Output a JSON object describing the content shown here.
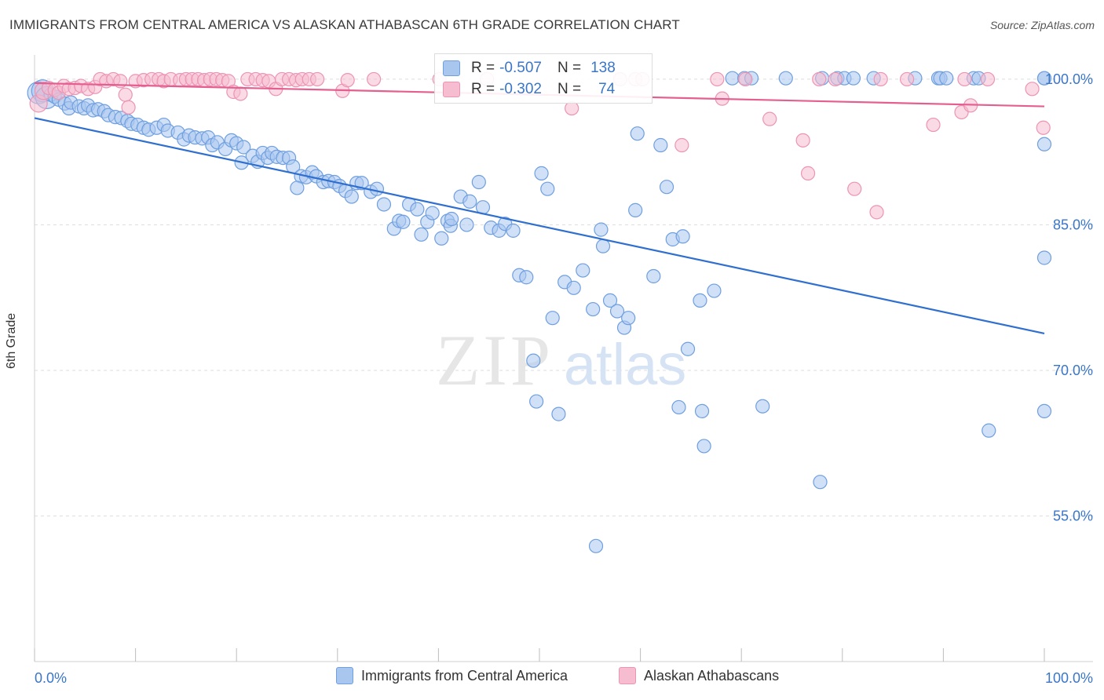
{
  "title": "IMMIGRANTS FROM CENTRAL AMERICA VS ALASKAN ATHABASCAN 6TH GRADE CORRELATION CHART",
  "source": "Source: ZipAtlas.com",
  "watermark": {
    "zip": "ZIP",
    "atlas": "atlas"
  },
  "colors": {
    "blue_fill": "#a9c6ef",
    "blue_stroke": "#6f9fe0",
    "blue_line": "#2f6fcf",
    "pink_fill": "#f6bcd0",
    "pink_stroke": "#ec94b4",
    "pink_line": "#e45f8f",
    "tick_label": "#3a76c8",
    "grid": "#dedede"
  },
  "legend_top": {
    "rows": [
      {
        "r_label": "R =",
        "r_value": "-0.507",
        "n_label": "N =",
        "n_value": "138"
      },
      {
        "r_label": "R =",
        "r_value": "-0.302",
        "n_label": "N =",
        "n_value": "74"
      }
    ]
  },
  "legend_bottom": [
    {
      "label": "Immigrants from Central America"
    },
    {
      "label": "Alaskan Athabascans"
    }
  ],
  "chart_data": {
    "type": "scatter",
    "title": "IMMIGRANTS FROM CENTRAL AMERICA VS ALASKAN ATHABASCAN 6TH GRADE CORRELATION CHART",
    "xlabel": "",
    "ylabel": "6th Grade",
    "xlim": [
      0,
      100
    ],
    "ylim": [
      40,
      102.5
    ],
    "x_tick_labels": [
      "0.0%",
      "100.0%"
    ],
    "y_ticks": [
      55,
      70,
      85,
      100
    ],
    "y_tick_labels": [
      "55.0%",
      "70.0%",
      "85.0%",
      "100.0%"
    ],
    "grid": true,
    "legend_position": "top-center",
    "series": [
      {
        "name": "Immigrants from Central America",
        "r": -0.507,
        "n": 138,
        "trend": {
          "x": [
            0,
            100
          ],
          "y": [
            96.0,
            73.8
          ]
        },
        "points": [
          [
            0.4,
            98.6
          ],
          [
            0.8,
            98.8
          ],
          [
            1.2,
            98.1
          ],
          [
            1.6,
            98.4
          ],
          [
            2.0,
            98.2
          ],
          [
            2.4,
            97.9
          ],
          [
            3.0,
            97.5
          ],
          [
            3.4,
            97.0
          ],
          [
            3.6,
            97.6
          ],
          [
            4.4,
            97.2
          ],
          [
            4.9,
            97.0
          ],
          [
            5.3,
            97.3
          ],
          [
            5.8,
            96.8
          ],
          [
            6.3,
            96.9
          ],
          [
            6.9,
            96.7
          ],
          [
            7.3,
            96.3
          ],
          [
            8.0,
            96.1
          ],
          [
            8.6,
            96.0
          ],
          [
            9.2,
            95.7
          ],
          [
            9.6,
            95.4
          ],
          [
            10.2,
            95.3
          ],
          [
            10.8,
            95.0
          ],
          [
            11.3,
            94.8
          ],
          [
            12.1,
            95.0
          ],
          [
            12.8,
            95.3
          ],
          [
            13.2,
            94.7
          ],
          [
            14.2,
            94.5
          ],
          [
            14.8,
            93.8
          ],
          [
            15.3,
            94.2
          ],
          [
            15.9,
            94.0
          ],
          [
            16.6,
            93.9
          ],
          [
            17.2,
            94.0
          ],
          [
            17.6,
            93.2
          ],
          [
            18.1,
            93.5
          ],
          [
            18.9,
            92.8
          ],
          [
            19.5,
            93.7
          ],
          [
            20.0,
            93.4
          ],
          [
            20.5,
            91.4
          ],
          [
            20.7,
            93.0
          ],
          [
            21.6,
            92.1
          ],
          [
            22.1,
            91.5
          ],
          [
            22.6,
            92.4
          ],
          [
            23.1,
            91.9
          ],
          [
            23.5,
            92.4
          ],
          [
            24.0,
            92.0
          ],
          [
            24.6,
            91.9
          ],
          [
            25.2,
            91.9
          ],
          [
            25.6,
            91.0
          ],
          [
            26.4,
            90.0
          ],
          [
            26.0,
            88.8
          ],
          [
            26.9,
            89.9
          ],
          [
            27.5,
            90.4
          ],
          [
            27.9,
            90.0
          ],
          [
            28.6,
            89.4
          ],
          [
            29.1,
            89.5
          ],
          [
            29.7,
            89.4
          ],
          [
            30.2,
            89.0
          ],
          [
            30.8,
            88.5
          ],
          [
            31.4,
            87.9
          ],
          [
            31.9,
            89.3
          ],
          [
            32.4,
            89.3
          ],
          [
            33.3,
            88.4
          ],
          [
            33.9,
            88.7
          ],
          [
            34.6,
            87.1
          ],
          [
            35.6,
            84.6
          ],
          [
            36.1,
            85.4
          ],
          [
            37.1,
            87.1
          ],
          [
            36.5,
            85.3
          ],
          [
            37.9,
            86.6
          ],
          [
            38.3,
            84.0
          ],
          [
            38.9,
            85.3
          ],
          [
            39.4,
            86.2
          ],
          [
            40.3,
            83.6
          ],
          [
            40.9,
            85.4
          ],
          [
            41.2,
            84.9
          ],
          [
            41.3,
            85.6
          ],
          [
            42.2,
            87.9
          ],
          [
            42.8,
            85.0
          ],
          [
            43.1,
            87.4
          ],
          [
            44.0,
            89.4
          ],
          [
            44.4,
            86.8
          ],
          [
            45.2,
            84.7
          ],
          [
            46.0,
            84.4
          ],
          [
            46.6,
            85.1
          ],
          [
            47.4,
            84.4
          ],
          [
            48.0,
            79.8
          ],
          [
            48.7,
            79.6
          ],
          [
            49.4,
            71.0
          ],
          [
            49.7,
            66.8
          ],
          [
            50.2,
            90.3
          ],
          [
            50.8,
            88.7
          ],
          [
            51.3,
            75.4
          ],
          [
            51.9,
            65.5
          ],
          [
            52.5,
            79.1
          ],
          [
            53.4,
            78.5
          ],
          [
            54.3,
            80.3
          ],
          [
            55.3,
            76.3
          ],
          [
            56.1,
            84.5
          ],
          [
            56.3,
            82.8
          ],
          [
            57.0,
            77.2
          ],
          [
            57.7,
            76.1
          ],
          [
            58.4,
            74.4
          ],
          [
            58.8,
            75.4
          ],
          [
            59.5,
            86.5
          ],
          [
            59.7,
            94.4
          ],
          [
            61.3,
            79.7
          ],
          [
            62.0,
            93.2
          ],
          [
            62.6,
            88.9
          ],
          [
            63.2,
            83.5
          ],
          [
            63.8,
            66.2
          ],
          [
            64.2,
            83.8
          ],
          [
            64.7,
            72.2
          ],
          [
            65.9,
            77.2
          ],
          [
            66.1,
            65.8
          ],
          [
            66.3,
            62.2
          ],
          [
            67.3,
            78.2
          ],
          [
            69.1,
            100.1
          ],
          [
            70.3,
            100.1
          ],
          [
            71.0,
            100.1
          ],
          [
            72.1,
            66.3
          ],
          [
            74.4,
            100.1
          ],
          [
            77.8,
            58.5
          ],
          [
            78.0,
            100.1
          ],
          [
            79.5,
            100.1
          ],
          [
            80.2,
            100.1
          ],
          [
            81.1,
            100.1
          ],
          [
            83.1,
            100.1
          ],
          [
            87.2,
            100.1
          ],
          [
            89.5,
            100.1
          ],
          [
            89.7,
            100.1
          ],
          [
            90.3,
            100.1
          ],
          [
            93.0,
            100.1
          ],
          [
            100.0,
            100.1
          ],
          [
            100.0,
            100.1
          ],
          [
            100.0,
            65.8
          ],
          [
            100.0,
            93.3
          ],
          [
            100.0,
            81.6
          ],
          [
            55.6,
            51.9
          ],
          [
            93.5,
            100.1
          ],
          [
            94.5,
            63.8
          ]
        ]
      },
      {
        "name": "Alaskan Athabascans",
        "r": -0.302,
        "n": 74,
        "trend": {
          "x": [
            0,
            100
          ],
          "y": [
            99.6,
            97.2
          ]
        },
        "points": [
          [
            0.4,
            97.5
          ],
          [
            0.9,
            98.8
          ],
          [
            1.4,
            99.1
          ],
          [
            2.0,
            98.9
          ],
          [
            2.4,
            98.6
          ],
          [
            2.9,
            99.3
          ],
          [
            3.4,
            99.0
          ],
          [
            4.0,
            99.1
          ],
          [
            4.6,
            99.3
          ],
          [
            5.3,
            99.0
          ],
          [
            6.0,
            99.2
          ],
          [
            6.5,
            100.0
          ],
          [
            7.1,
            99.8
          ],
          [
            7.8,
            100.0
          ],
          [
            8.5,
            99.8
          ],
          [
            9.0,
            98.4
          ],
          [
            9.3,
            97.1
          ],
          [
            10.0,
            99.8
          ],
          [
            10.8,
            99.9
          ],
          [
            11.6,
            100.0
          ],
          [
            12.3,
            100.0
          ],
          [
            12.8,
            99.8
          ],
          [
            13.5,
            100.0
          ],
          [
            14.4,
            99.9
          ],
          [
            15.0,
            100.0
          ],
          [
            15.6,
            100.0
          ],
          [
            16.2,
            100.0
          ],
          [
            16.8,
            99.9
          ],
          [
            17.4,
            100.0
          ],
          [
            18.0,
            100.0
          ],
          [
            18.6,
            99.9
          ],
          [
            19.2,
            99.8
          ],
          [
            19.7,
            98.7
          ],
          [
            20.4,
            98.5
          ],
          [
            21.1,
            100.0
          ],
          [
            21.9,
            100.0
          ],
          [
            22.6,
            99.9
          ],
          [
            23.2,
            99.8
          ],
          [
            23.9,
            99.0
          ],
          [
            24.5,
            100.0
          ],
          [
            25.2,
            100.0
          ],
          [
            25.9,
            99.9
          ],
          [
            26.5,
            100.0
          ],
          [
            27.2,
            100.0
          ],
          [
            28.0,
            100.0
          ],
          [
            30.5,
            98.8
          ],
          [
            31.0,
            99.9
          ],
          [
            33.6,
            100.0
          ],
          [
            40.1,
            100.0
          ],
          [
            44.8,
            100.0
          ],
          [
            53.2,
            97.0
          ],
          [
            58.0,
            100.0
          ],
          [
            59.5,
            100.0
          ],
          [
            60.2,
            100.0
          ],
          [
            64.1,
            93.2
          ],
          [
            67.6,
            100.0
          ],
          [
            68.1,
            98.0
          ],
          [
            70.4,
            100.0
          ],
          [
            72.8,
            95.9
          ],
          [
            76.1,
            93.7
          ],
          [
            76.6,
            90.3
          ],
          [
            77.7,
            100.0
          ],
          [
            79.3,
            100.0
          ],
          [
            81.2,
            88.7
          ],
          [
            83.4,
            86.3
          ],
          [
            83.8,
            100.0
          ],
          [
            86.4,
            100.0
          ],
          [
            89.0,
            95.3
          ],
          [
            91.8,
            96.6
          ],
          [
            92.1,
            100.0
          ],
          [
            92.7,
            97.3
          ],
          [
            94.4,
            100.0
          ],
          [
            98.8,
            99.0
          ],
          [
            99.9,
            95.0
          ]
        ]
      }
    ]
  }
}
